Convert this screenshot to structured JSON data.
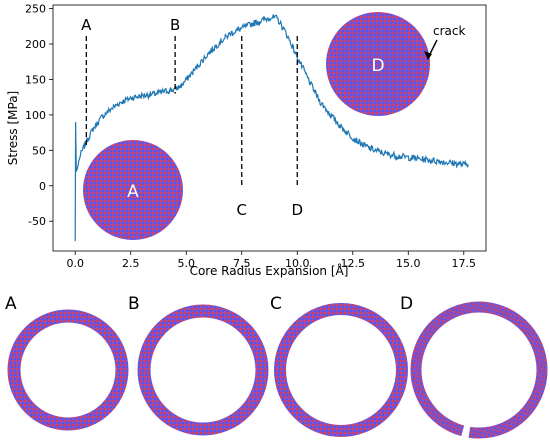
{
  "chart_data": {
    "type": "line",
    "xlabel": "Core Radius Expansion [Å]",
    "ylabel": "Stress [MPa]",
    "xlim": [
      -1.0,
      18.5
    ],
    "ylim": [
      -92,
      255
    ],
    "xticks": [
      "0.0",
      "2.5",
      "5.0",
      "7.5",
      "10.0",
      "12.5",
      "15.0",
      "17.5"
    ],
    "yticks": [
      "-50",
      "0",
      "50",
      "100",
      "150",
      "200",
      "250"
    ],
    "grid": false,
    "series": [
      {
        "color": "#1f77b4",
        "x": [
          0.0,
          0.02,
          0.05,
          0.1,
          0.2,
          0.3,
          0.5,
          0.8,
          1.2,
          1.6,
          2.0,
          2.5,
          3.0,
          3.5,
          4.0,
          4.5,
          4.8,
          5.2,
          5.6,
          6.0,
          6.5,
          7.0,
          7.5,
          8.0,
          8.5,
          8.8,
          9.1,
          9.5,
          10.0,
          10.5,
          11.0,
          11.5,
          12.0,
          12.5,
          13.0,
          13.5,
          14.0,
          14.5,
          15.0,
          15.5,
          16.0,
          16.5,
          17.0,
          17.5,
          17.7
        ],
        "y": [
          -78,
          90,
          20,
          25,
          40,
          48,
          62,
          80,
          97,
          108,
          117,
          124,
          127,
          129,
          133,
          136,
          142,
          157,
          172,
          187,
          202,
          215,
          222,
          229,
          234,
          238,
          236,
          215,
          182,
          150,
          120,
          100,
          82,
          68,
          57,
          50,
          45,
          42,
          40,
          38,
          36,
          34,
          32,
          30,
          30
        ]
      }
    ],
    "annotations": [
      {
        "label": "A",
        "x": 0.5
      },
      {
        "label": "B",
        "x": 4.5
      },
      {
        "label": "C",
        "x": 7.5
      },
      {
        "label": "D",
        "x": 10.0
      }
    ],
    "crack_label": "crack",
    "inset_labels": [
      "A",
      "D"
    ]
  },
  "panels": [
    "A",
    "B",
    "C",
    "D"
  ],
  "colors": {
    "line": "#1f77b4",
    "atom_red": "#d0405a",
    "atom_blue": "#5a55e0",
    "atom_mix": "#8a4ec8"
  }
}
